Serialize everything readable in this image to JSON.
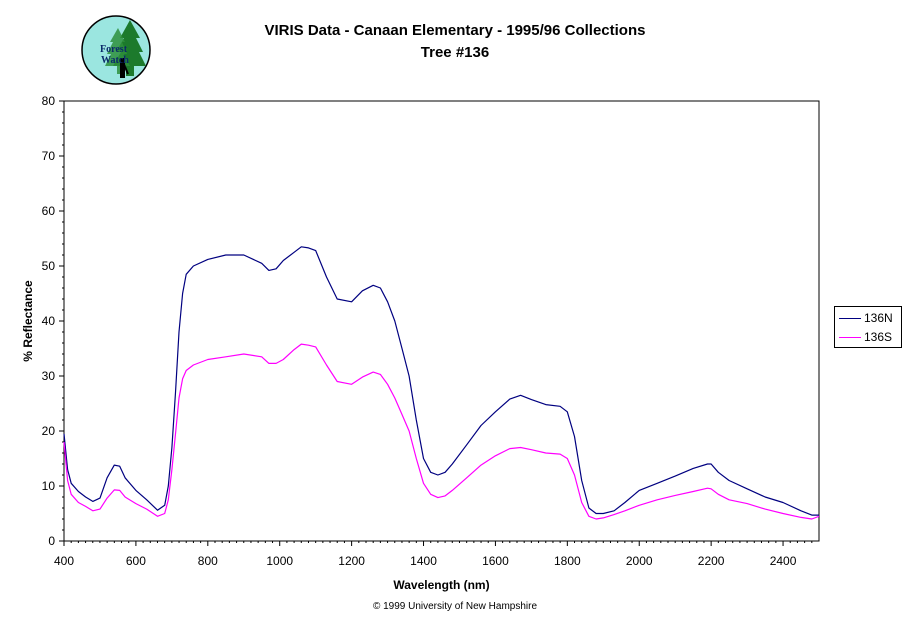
{
  "header": {
    "logo_text_line1": "Forest",
    "logo_text_line2": "Watch"
  },
  "footer": {
    "copyright": "© 1999 University of New Hampshire"
  },
  "colors": {
    "series_136N": "#000080",
    "series_136S": "#ff00ff",
    "logo_background": "#9be6e0",
    "logo_trees": "#1c7a2c"
  },
  "chart_data": {
    "type": "line",
    "title": "VIRIS Data - Canaan Elementary - 1995/96 Collections",
    "subtitle": "Tree #136",
    "xlabel": "Wavelength (nm)",
    "ylabel": "% Reflectance",
    "xlim": [
      400,
      2500
    ],
    "ylim": [
      0,
      80
    ],
    "xticks": [
      400,
      600,
      800,
      1000,
      1200,
      1400,
      1600,
      1800,
      2000,
      2200,
      2400
    ],
    "yticks": [
      0,
      10,
      20,
      30,
      40,
      50,
      60,
      70,
      80
    ],
    "grid": false,
    "legend": "right",
    "series": [
      {
        "name": "136N",
        "color": "#000080",
        "x": [
          400,
          410,
          420,
          440,
          460,
          480,
          500,
          520,
          540,
          555,
          570,
          600,
          630,
          660,
          680,
          690,
          700,
          710,
          720,
          730,
          740,
          760,
          800,
          850,
          900,
          950,
          970,
          990,
          1010,
          1040,
          1060,
          1080,
          1100,
          1130,
          1160,
          1200,
          1230,
          1260,
          1280,
          1300,
          1320,
          1340,
          1360,
          1380,
          1400,
          1420,
          1440,
          1460,
          1480,
          1520,
          1560,
          1600,
          1640,
          1670,
          1700,
          1740,
          1780,
          1800,
          1820,
          1840,
          1860,
          1880,
          1900,
          1930,
          1960,
          2000,
          2050,
          2100,
          2150,
          2190,
          2200,
          2220,
          2250,
          2300,
          2350,
          2400,
          2450,
          2480,
          2500
        ],
        "values": [
          19.5,
          13,
          10.5,
          9,
          8,
          7.2,
          7.8,
          11.5,
          13.8,
          13.6,
          11.5,
          9.2,
          7.5,
          5.6,
          6.5,
          10,
          17,
          27,
          38,
          45,
          48.5,
          50,
          51.2,
          52,
          52,
          50.5,
          49.2,
          49.5,
          51,
          52.5,
          53.5,
          53.3,
          52.8,
          48,
          44,
          43.5,
          45.5,
          46.5,
          46,
          43.5,
          40,
          35,
          30,
          22,
          15,
          12.5,
          12,
          12.5,
          14,
          17.5,
          21,
          23.5,
          25.8,
          26.5,
          25.7,
          24.8,
          24.5,
          23.5,
          19,
          11,
          6,
          5,
          5,
          5.5,
          7,
          9.2,
          10.5,
          11.8,
          13.2,
          14,
          14,
          12.5,
          11,
          9.5,
          8,
          7,
          5.5,
          4.7,
          4.7
        ]
      },
      {
        "name": "136S",
        "color": "#ff00ff",
        "x": [
          400,
          410,
          420,
          440,
          460,
          480,
          500,
          520,
          540,
          555,
          570,
          600,
          630,
          660,
          680,
          690,
          700,
          710,
          720,
          730,
          740,
          760,
          800,
          850,
          900,
          950,
          970,
          990,
          1010,
          1040,
          1060,
          1080,
          1100,
          1130,
          1160,
          1200,
          1230,
          1260,
          1280,
          1300,
          1320,
          1340,
          1360,
          1380,
          1400,
          1420,
          1440,
          1460,
          1480,
          1520,
          1560,
          1600,
          1640,
          1670,
          1700,
          1740,
          1780,
          1800,
          1820,
          1840,
          1860,
          1880,
          1900,
          1930,
          1960,
          2000,
          2050,
          2100,
          2150,
          2190,
          2200,
          2220,
          2250,
          2300,
          2350,
          2400,
          2450,
          2480,
          2500
        ],
        "values": [
          18,
          11,
          8.5,
          7,
          6.3,
          5.5,
          5.8,
          7.8,
          9.3,
          9.2,
          8,
          6.8,
          5.8,
          4.5,
          5,
          7.5,
          13,
          19.5,
          26,
          29.5,
          31,
          32,
          33,
          33.5,
          34,
          33.5,
          32.3,
          32.3,
          33,
          34.8,
          35.8,
          35.6,
          35.3,
          32,
          29,
          28.5,
          29.8,
          30.7,
          30.3,
          28.5,
          26,
          23,
          20,
          15,
          10.5,
          8.5,
          7.9,
          8.2,
          9.2,
          11.5,
          13.8,
          15.5,
          16.8,
          17,
          16.6,
          16,
          15.8,
          15,
          12,
          7,
          4.5,
          4,
          4.2,
          4.8,
          5.5,
          6.5,
          7.5,
          8.3,
          9,
          9.6,
          9.5,
          8.5,
          7.5,
          6.8,
          5.8,
          5,
          4.3,
          4,
          4.5
        ]
      }
    ]
  }
}
